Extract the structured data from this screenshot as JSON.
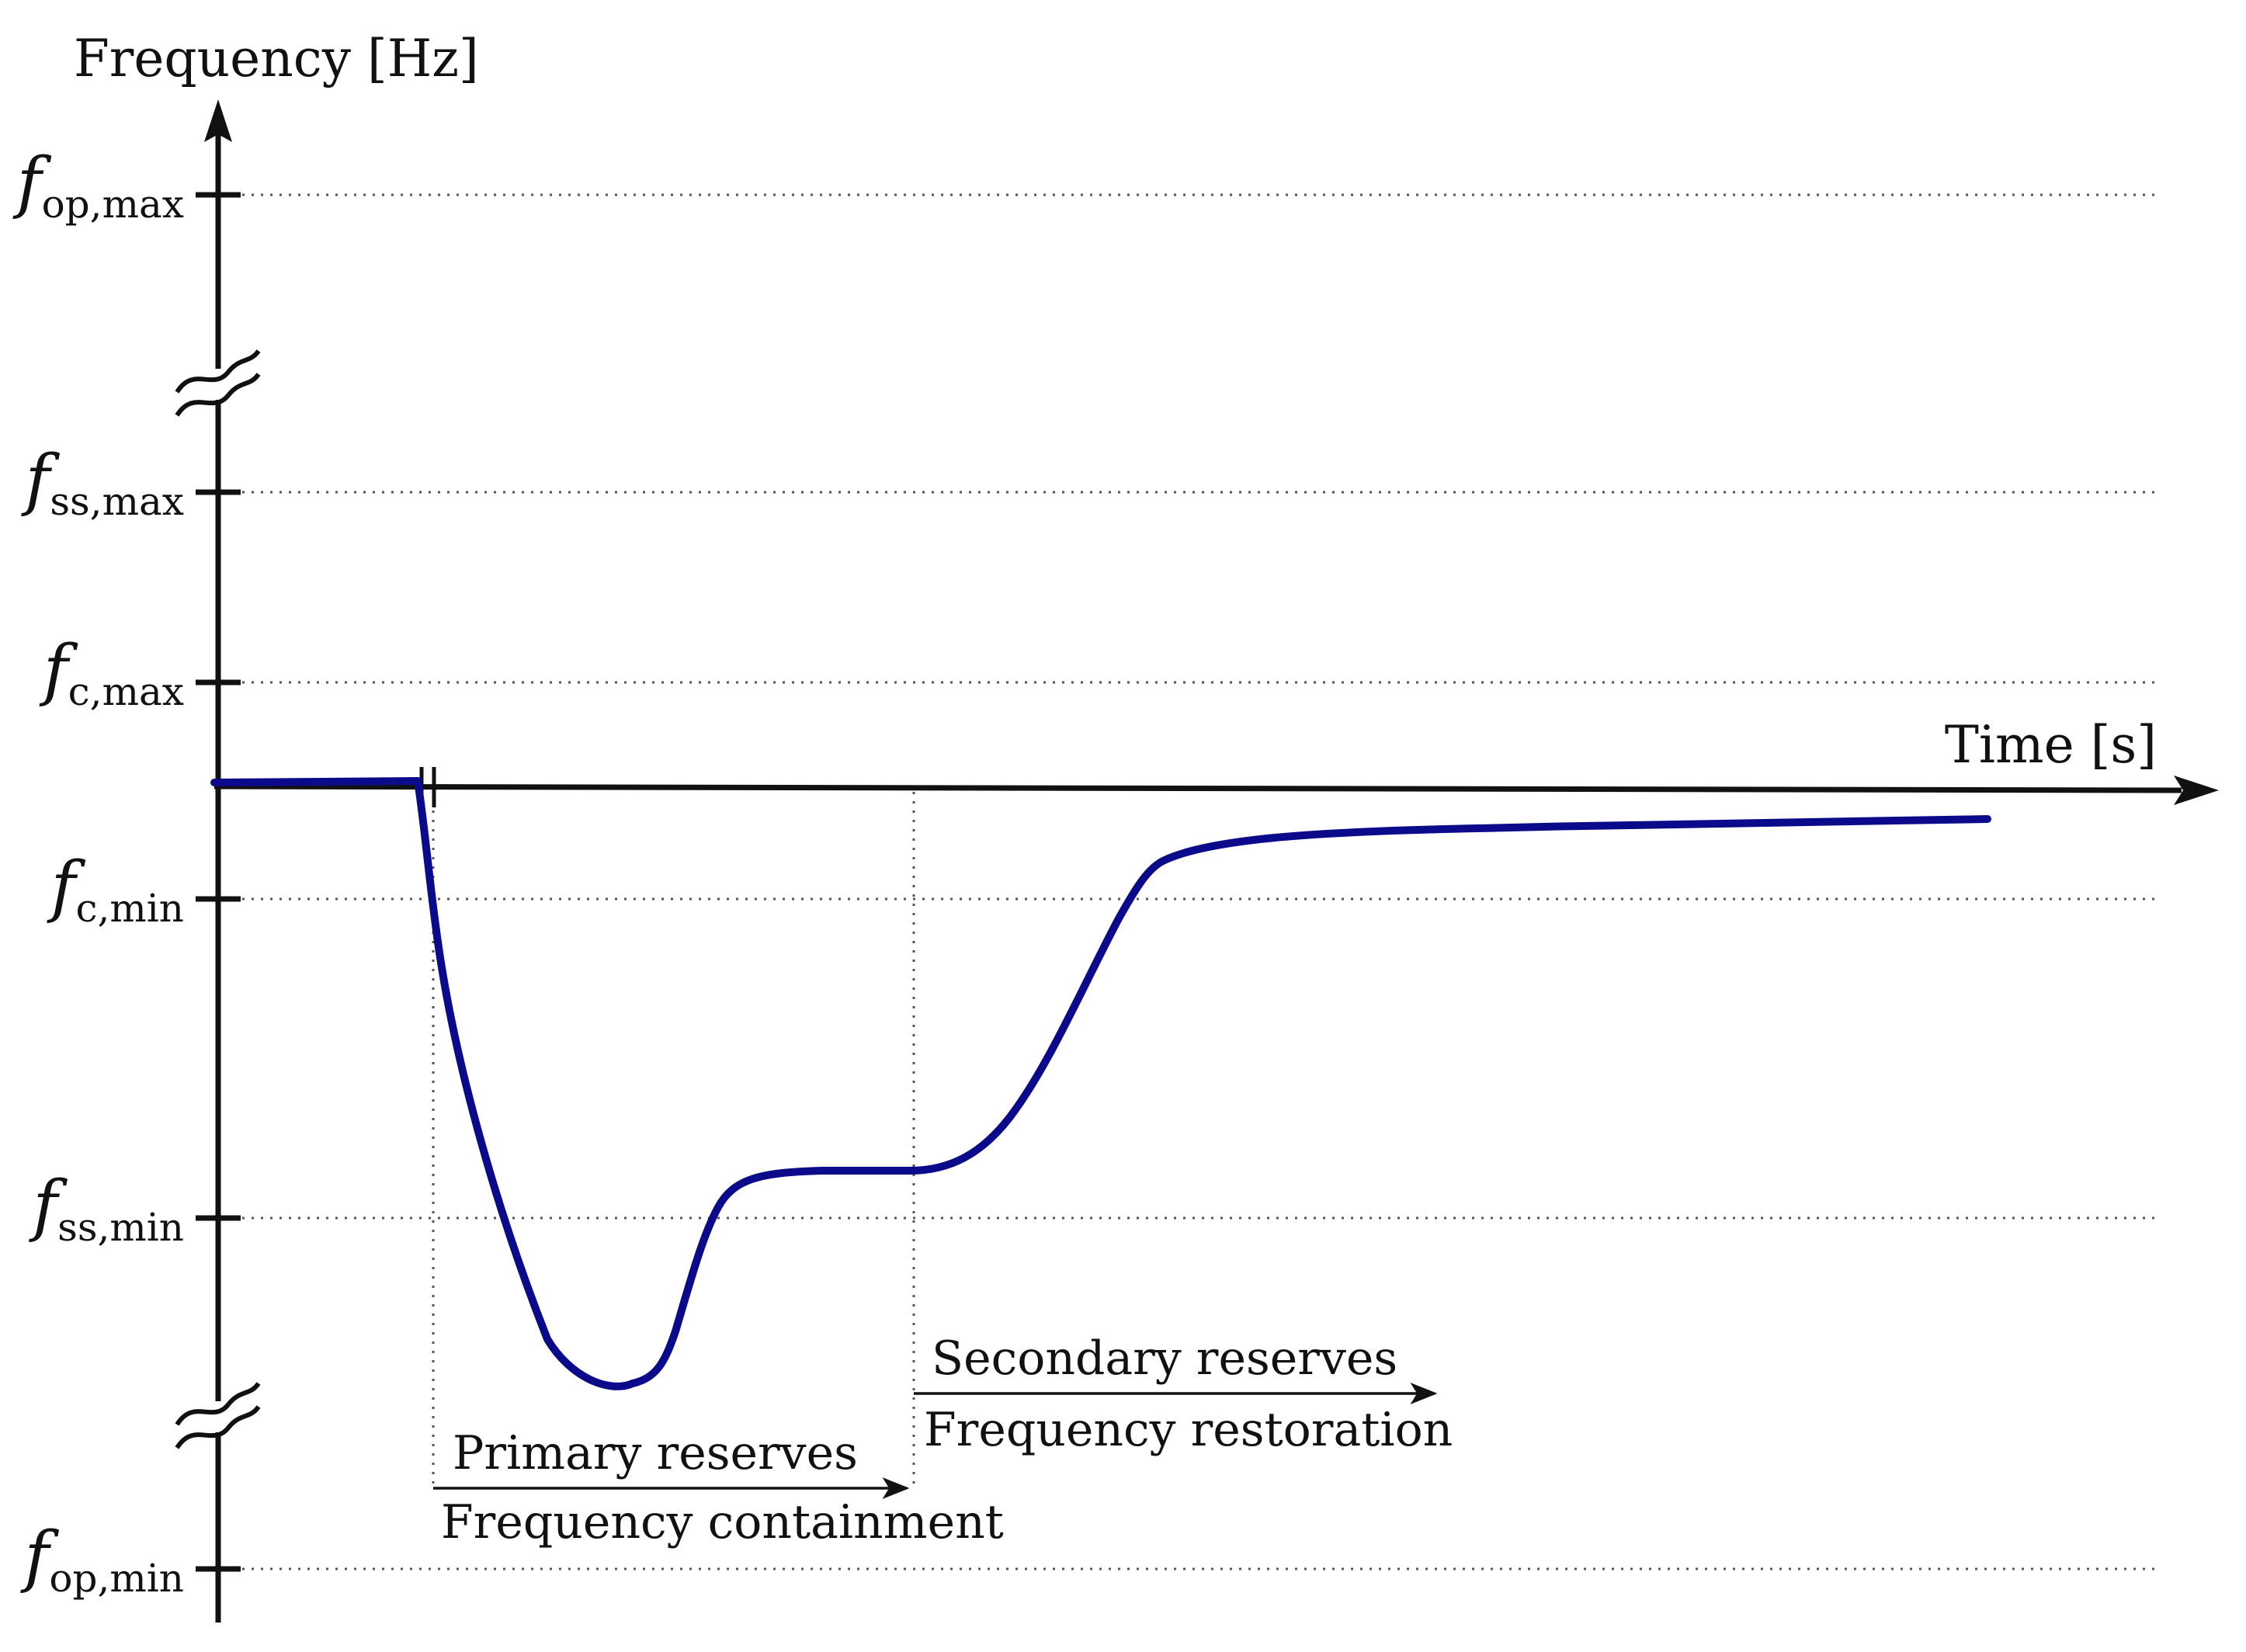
{
  "axes": {
    "y_title": "Frequency [Hz]",
    "x_title": "Time [s]"
  },
  "y_ticks": [
    {
      "symbol": "f",
      "sub": "op,max"
    },
    {
      "symbol": "f",
      "sub": "ss,max"
    },
    {
      "symbol": "f",
      "sub": "c,max"
    },
    {
      "symbol": "f",
      "sub": "c,min"
    },
    {
      "symbol": "f",
      "sub": "ss,min"
    },
    {
      "symbol": "f",
      "sub": "op,min"
    }
  ],
  "annotations": {
    "primary_top": "Primary reserves",
    "primary_bottom": "Frequency containment",
    "secondary_top": "Secondary reserves",
    "secondary_bottom": "Frequency restoration"
  },
  "colors": {
    "curve": "#0a0a8a",
    "axis": "#111111",
    "gridline": "#555555"
  },
  "grid": "dotted horizontal reference lines at each tick",
  "axis_breaks": "wavy break marks on the y-axis between f_op,max and f_ss,max, and between f_ss,min and f_op,min",
  "curve_description": "frequency steady near nominal, drops sharply after disturbance to a nadir below f_ss,min, recovers to a plateau above f_ss,min, then rises back toward nominal"
}
